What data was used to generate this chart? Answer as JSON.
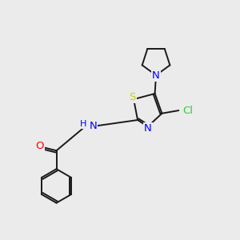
{
  "bg_color": "#ebebeb",
  "bond_color": "#1a1a1a",
  "atom_colors": {
    "N": "#0000ff",
    "O": "#ff0000",
    "S": "#cccc00",
    "Cl": "#33cc33",
    "C": "#1a1a1a",
    "H": "#808080",
    "NH": "#0000ff"
  },
  "font_size": 8.5,
  "line_width": 1.4
}
